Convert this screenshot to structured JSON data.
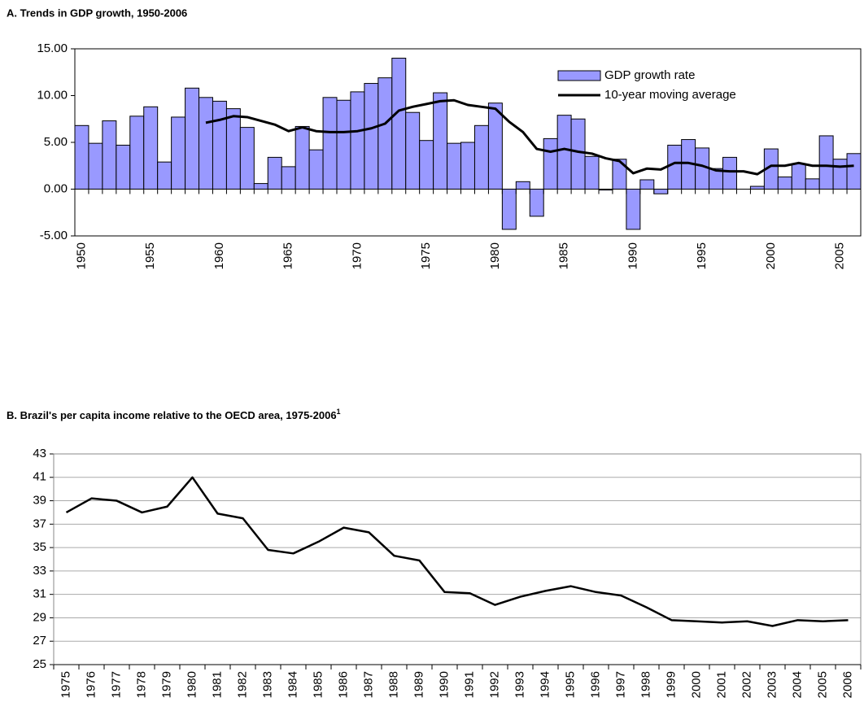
{
  "chart_data": [
    {
      "type": "bar",
      "title": "A. Trends in GDP growth, 1950-2006",
      "categories": [
        "1950",
        null,
        null,
        null,
        null,
        "1955",
        null,
        null,
        null,
        null,
        "1960",
        null,
        null,
        null,
        null,
        "1965",
        null,
        null,
        null,
        null,
        "1970",
        null,
        null,
        null,
        null,
        "1975",
        null,
        null,
        null,
        null,
        "1980",
        null,
        null,
        null,
        null,
        "1985",
        null,
        null,
        null,
        null,
        "1990",
        null,
        null,
        null,
        null,
        "1995",
        null,
        null,
        null,
        null,
        "2000",
        null,
        null,
        null,
        null,
        "2005",
        null
      ],
      "series": [
        {
          "name": "GDP growth rate",
          "type": "bar",
          "color": "#9999ff",
          "values": [
            6.8,
            4.9,
            7.3,
            4.7,
            7.8,
            8.8,
            2.9,
            7.7,
            10.8,
            9.8,
            9.4,
            8.6,
            6.6,
            0.6,
            3.4,
            2.4,
            6.7,
            4.2,
            9.8,
            9.5,
            10.4,
            11.3,
            11.9,
            14.0,
            8.2,
            5.2,
            10.3,
            4.9,
            5.0,
            6.8,
            9.2,
            -4.3,
            0.8,
            -2.9,
            5.4,
            7.9,
            7.5,
            3.5,
            -0.1,
            3.2,
            -4.3,
            1.0,
            -0.5,
            4.7,
            5.3,
            4.4,
            2.2,
            3.4,
            0.0,
            0.3,
            4.3,
            1.3,
            2.7,
            1.1,
            5.7,
            3.2,
            3.8
          ]
        },
        {
          "name": "10-year moving average",
          "type": "line",
          "color": "#000000",
          "values": [
            null,
            null,
            null,
            null,
            null,
            null,
            null,
            null,
            null,
            7.1,
            7.4,
            7.8,
            7.7,
            7.3,
            6.9,
            6.2,
            6.6,
            6.2,
            6.1,
            6.1,
            6.2,
            6.5,
            7.0,
            8.4,
            8.8,
            9.1,
            9.4,
            9.5,
            9.0,
            8.8,
            8.6,
            7.2,
            6.1,
            4.3,
            4.0,
            4.3,
            4.0,
            3.8,
            3.3,
            3.0,
            1.7,
            2.2,
            2.1,
            2.8,
            2.8,
            2.5,
            2.0,
            1.9,
            1.9,
            1.6,
            2.5,
            2.5,
            2.8,
            2.5,
            2.5,
            2.4,
            2.5
          ]
        }
      ],
      "ylim": [
        -5,
        15
      ],
      "yticks": [
        {
          "value": -5,
          "label": "-5.00"
        },
        {
          "value": 0,
          "label": "0.00"
        },
        {
          "value": 5,
          "label": "5.00"
        },
        {
          "value": 10,
          "label": "10.00"
        },
        {
          "value": 15,
          "label": "15.00"
        }
      ],
      "grid": false,
      "legend": "upper right"
    },
    {
      "type": "line",
      "title": "B. Brazil's per capita income relative to the OECD area, 1975-2006",
      "title_note": "1",
      "categories": [
        "1975",
        "1976",
        "1977",
        "1978",
        "1979",
        "1980",
        "1981",
        "1982",
        "1983",
        "1984",
        "1985",
        "1986",
        "1987",
        "1988",
        "1989",
        "1990",
        "1991",
        "1992",
        "1993",
        "1994",
        "1995",
        "1996",
        "1997",
        "1998",
        "1999",
        "2000",
        "2001",
        "2002",
        "2003",
        "2004",
        "2005",
        "2006"
      ],
      "color": "#000000",
      "values": [
        38.0,
        39.2,
        39.0,
        38.0,
        38.5,
        41.0,
        37.9,
        37.5,
        34.8,
        34.5,
        35.5,
        36.7,
        36.3,
        34.3,
        33.9,
        31.2,
        31.1,
        30.1,
        30.8,
        31.3,
        31.7,
        31.2,
        30.9,
        29.9,
        28.8,
        28.7,
        28.6,
        28.7,
        28.3,
        28.8,
        28.7,
        28.8
      ],
      "ylim": [
        25,
        43
      ],
      "yticks": [
        25,
        27,
        29,
        31,
        33,
        35,
        37,
        39,
        41,
        43
      ],
      "grid": true
    }
  ]
}
